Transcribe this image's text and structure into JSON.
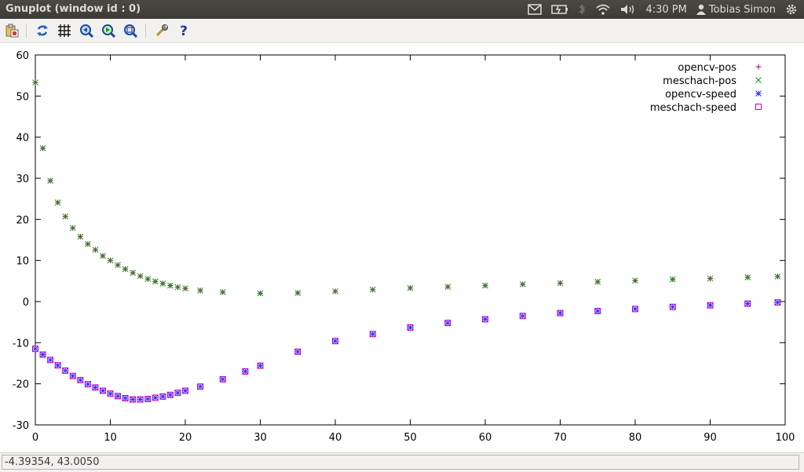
{
  "window": {
    "title": "Gnuplot (window id : 0)"
  },
  "system_tray": {
    "time": "4:30 PM",
    "user": "Tobias Simon",
    "icons": [
      "mail-icon",
      "battery-icon",
      "bluetooth-icon",
      "wifi-icon",
      "volume-icon",
      "user-icon",
      "settings-gear-icon"
    ]
  },
  "toolbar": {
    "icons": [
      "copy-to-clipboard-icon",
      "replot-icon",
      "grid-icon",
      "zoom-previous-icon",
      "zoom-next-icon",
      "autoscale-icon",
      "options-wrench-icon",
      "help-icon"
    ]
  },
  "status_bar": {
    "coordinates": "-4.39354,  43.0050"
  },
  "chart_data": {
    "type": "scatter",
    "title": "",
    "xlabel": "",
    "ylabel": "",
    "xlim": [
      0,
      100
    ],
    "ylim": [
      -30,
      60
    ],
    "x_ticks": [
      "0",
      "10",
      "20",
      "30",
      "40",
      "50",
      "60",
      "70",
      "80",
      "90",
      "100"
    ],
    "y_ticks": [
      "-30",
      "-20",
      "-10",
      "0",
      "10",
      "20",
      "30",
      "40",
      "50",
      "60"
    ],
    "legend_position": "top-right",
    "grid": false,
    "series": [
      {
        "name": "opencv-pos",
        "marker": "plus",
        "color": "#9c0060",
        "points": [
          [
            0,
            53.3
          ],
          [
            1,
            37.3
          ],
          [
            2,
            29.4
          ],
          [
            3,
            24.1
          ],
          [
            4,
            20.7
          ],
          [
            5,
            17.9
          ],
          [
            6,
            15.8
          ],
          [
            7,
            14.0
          ],
          [
            8,
            12.6
          ],
          [
            9,
            11.1
          ],
          [
            10,
            10.0
          ],
          [
            11,
            8.9
          ],
          [
            12,
            7.9
          ],
          [
            13,
            7.0
          ],
          [
            14,
            6.2
          ],
          [
            15,
            5.5
          ],
          [
            16,
            4.9
          ],
          [
            17,
            4.4
          ],
          [
            18,
            3.9
          ],
          [
            19,
            3.5
          ],
          [
            20,
            3.2
          ],
          [
            22,
            2.7
          ],
          [
            25,
            2.3
          ],
          [
            30,
            2.0
          ],
          [
            35,
            2.1
          ],
          [
            40,
            2.5
          ],
          [
            45,
            2.9
          ],
          [
            50,
            3.3
          ],
          [
            55,
            3.6
          ],
          [
            60,
            3.9
          ],
          [
            65,
            4.2
          ],
          [
            70,
            4.5
          ],
          [
            75,
            4.8
          ],
          [
            80,
            5.1
          ],
          [
            85,
            5.4
          ],
          [
            90,
            5.6
          ],
          [
            95,
            5.9
          ],
          [
            99,
            6.1
          ]
        ]
      },
      {
        "name": "meschach-pos",
        "marker": "cross",
        "color": "#00a000",
        "points": [
          [
            0,
            53.3
          ],
          [
            1,
            37.3
          ],
          [
            2,
            29.4
          ],
          [
            3,
            24.1
          ],
          [
            4,
            20.7
          ],
          [
            5,
            17.9
          ],
          [
            6,
            15.8
          ],
          [
            7,
            14.0
          ],
          [
            8,
            12.6
          ],
          [
            9,
            11.1
          ],
          [
            10,
            10.0
          ],
          [
            11,
            8.9
          ],
          [
            12,
            7.9
          ],
          [
            13,
            7.0
          ],
          [
            14,
            6.2
          ],
          [
            15,
            5.5
          ],
          [
            16,
            4.9
          ],
          [
            17,
            4.4
          ],
          [
            18,
            3.9
          ],
          [
            19,
            3.5
          ],
          [
            20,
            3.2
          ],
          [
            22,
            2.7
          ],
          [
            25,
            2.3
          ],
          [
            30,
            2.0
          ],
          [
            35,
            2.1
          ],
          [
            40,
            2.5
          ],
          [
            45,
            2.9
          ],
          [
            50,
            3.3
          ],
          [
            55,
            3.6
          ],
          [
            60,
            3.9
          ],
          [
            65,
            4.2
          ],
          [
            70,
            4.5
          ],
          [
            75,
            4.8
          ],
          [
            80,
            5.1
          ],
          [
            85,
            5.4
          ],
          [
            90,
            5.6
          ],
          [
            95,
            5.9
          ],
          [
            99,
            6.1
          ]
        ]
      },
      {
        "name": "opencv-speed",
        "marker": "star",
        "color": "#3030ff",
        "points": [
          [
            0,
            -11.5
          ],
          [
            1,
            -12.9
          ],
          [
            2,
            -14.2
          ],
          [
            3,
            -15.5
          ],
          [
            4,
            -16.8
          ],
          [
            5,
            -18.1
          ],
          [
            6,
            -19.1
          ],
          [
            7,
            -20.1
          ],
          [
            8,
            -20.9
          ],
          [
            9,
            -21.7
          ],
          [
            10,
            -22.4
          ],
          [
            11,
            -23.0
          ],
          [
            12,
            -23.5
          ],
          [
            13,
            -23.8
          ],
          [
            14,
            -23.8
          ],
          [
            15,
            -23.7
          ],
          [
            16,
            -23.4
          ],
          [
            17,
            -23.1
          ],
          [
            18,
            -22.7
          ],
          [
            19,
            -22.2
          ],
          [
            20,
            -21.7
          ],
          [
            22,
            -20.7
          ],
          [
            25,
            -18.9
          ],
          [
            28,
            -17.0
          ],
          [
            30,
            -15.6
          ],
          [
            35,
            -12.2
          ],
          [
            40,
            -9.6
          ],
          [
            45,
            -7.9
          ],
          [
            50,
            -6.3
          ],
          [
            55,
            -5.2
          ],
          [
            60,
            -4.3
          ],
          [
            65,
            -3.5
          ],
          [
            70,
            -2.8
          ],
          [
            75,
            -2.3
          ],
          [
            80,
            -1.8
          ],
          [
            85,
            -1.3
          ],
          [
            90,
            -0.9
          ],
          [
            95,
            -0.5
          ],
          [
            99,
            -0.2
          ]
        ]
      },
      {
        "name": "meschach-speed",
        "marker": "square",
        "color": "#c000c0",
        "points": [
          [
            0,
            -11.5
          ],
          [
            1,
            -12.9
          ],
          [
            2,
            -14.2
          ],
          [
            3,
            -15.5
          ],
          [
            4,
            -16.8
          ],
          [
            5,
            -18.1
          ],
          [
            6,
            -19.1
          ],
          [
            7,
            -20.1
          ],
          [
            8,
            -20.9
          ],
          [
            9,
            -21.7
          ],
          [
            10,
            -22.4
          ],
          [
            11,
            -23.0
          ],
          [
            12,
            -23.5
          ],
          [
            13,
            -23.8
          ],
          [
            14,
            -23.8
          ],
          [
            15,
            -23.7
          ],
          [
            16,
            -23.4
          ],
          [
            17,
            -23.1
          ],
          [
            18,
            -22.7
          ],
          [
            19,
            -22.2
          ],
          [
            20,
            -21.7
          ],
          [
            22,
            -20.7
          ],
          [
            25,
            -18.9
          ],
          [
            28,
            -17.0
          ],
          [
            30,
            -15.6
          ],
          [
            35,
            -12.2
          ],
          [
            40,
            -9.6
          ],
          [
            45,
            -7.9
          ],
          [
            50,
            -6.3
          ],
          [
            55,
            -5.2
          ],
          [
            60,
            -4.3
          ],
          [
            65,
            -3.5
          ],
          [
            70,
            -2.8
          ],
          [
            75,
            -2.3
          ],
          [
            80,
            -1.8
          ],
          [
            85,
            -1.3
          ],
          [
            90,
            -0.9
          ],
          [
            95,
            -0.5
          ],
          [
            99,
            -0.2
          ]
        ]
      }
    ]
  }
}
